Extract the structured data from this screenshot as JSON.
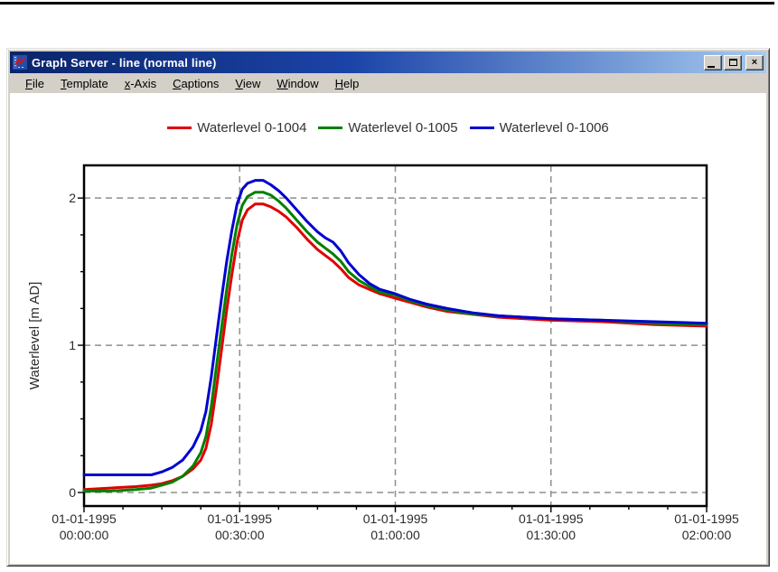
{
  "window": {
    "title": "Graph Server - line (normal line)",
    "controls": {
      "close_glyph": "×"
    }
  },
  "menubar": {
    "items": [
      {
        "key": "F",
        "rest": "ile"
      },
      {
        "key": "T",
        "rest": "emplate"
      },
      {
        "key": "x",
        "rest": "-Axis"
      },
      {
        "key": "C",
        "rest": "aptions"
      },
      {
        "key": "V",
        "rest": "iew"
      },
      {
        "key": "W",
        "rest": "indow"
      },
      {
        "key": "H",
        "rest": "elp"
      }
    ]
  },
  "chart_data": {
    "type": "line",
    "title": "",
    "legend_position": "top-center",
    "grid": "dashed",
    "x_axis": {
      "unit": "time (minutes from 01-01-1995 00:00:00)",
      "range": [
        0,
        120
      ],
      "minor_step": 7.5,
      "gridlines_at": [
        30,
        60,
        90
      ],
      "major_ticks": [
        {
          "t": 0,
          "date": "01-01-1995",
          "time": "00:00:00"
        },
        {
          "t": 30,
          "date": "01-01-1995",
          "time": "00:30:00"
        },
        {
          "t": 60,
          "date": "01-01-1995",
          "time": "01:00:00"
        },
        {
          "t": 90,
          "date": "01-01-1995",
          "time": "01:30:00"
        },
        {
          "t": 120,
          "date": "01-01-1995",
          "time": "02:00:00"
        }
      ]
    },
    "y_axis": {
      "label": "Waterlevel [m AD]",
      "range": [
        -0.092,
        2.222
      ],
      "major_ticks": [
        0,
        1,
        2
      ],
      "minor_step": 0.25,
      "gridlines_at": [
        0,
        1,
        2
      ]
    },
    "series": [
      {
        "name": "Waterlevel 0-1004",
        "color": "#e00000",
        "points": [
          [
            0,
            0.02
          ],
          [
            5,
            0.03
          ],
          [
            10,
            0.04
          ],
          [
            13,
            0.05
          ],
          [
            15,
            0.06
          ],
          [
            17,
            0.08
          ],
          [
            19,
            0.11
          ],
          [
            21,
            0.16
          ],
          [
            22.5,
            0.22
          ],
          [
            23.5,
            0.3
          ],
          [
            24.5,
            0.46
          ],
          [
            25.5,
            0.7
          ],
          [
            26.5,
            0.97
          ],
          [
            27.5,
            1.24
          ],
          [
            28.5,
            1.48
          ],
          [
            29.5,
            1.7
          ],
          [
            30.5,
            1.85
          ],
          [
            31.5,
            1.92
          ],
          [
            33,
            1.96
          ],
          [
            34.5,
            1.96
          ],
          [
            36,
            1.94
          ],
          [
            37.5,
            1.91
          ],
          [
            39,
            1.87
          ],
          [
            41,
            1.8
          ],
          [
            43,
            1.72
          ],
          [
            45,
            1.65
          ],
          [
            46.5,
            1.61
          ],
          [
            48,
            1.57
          ],
          [
            49.5,
            1.52
          ],
          [
            51,
            1.46
          ],
          [
            53,
            1.41
          ],
          [
            55,
            1.38
          ],
          [
            57,
            1.35
          ],
          [
            60,
            1.32
          ],
          [
            63,
            1.29
          ],
          [
            66,
            1.26
          ],
          [
            70,
            1.23
          ],
          [
            75,
            1.21
          ],
          [
            80,
            1.19
          ],
          [
            85,
            1.18
          ],
          [
            90,
            1.17
          ],
          [
            100,
            1.16
          ],
          [
            110,
            1.14
          ],
          [
            120,
            1.13
          ]
        ]
      },
      {
        "name": "Waterlevel 0-1005",
        "color": "#008000",
        "points": [
          [
            0,
            0.01
          ],
          [
            5,
            0.01
          ],
          [
            10,
            0.02
          ],
          [
            13,
            0.03
          ],
          [
            15,
            0.05
          ],
          [
            17,
            0.07
          ],
          [
            19,
            0.11
          ],
          [
            21,
            0.18
          ],
          [
            22.5,
            0.27
          ],
          [
            23.5,
            0.38
          ],
          [
            24.5,
            0.58
          ],
          [
            25.5,
            0.85
          ],
          [
            26.5,
            1.12
          ],
          [
            27.5,
            1.38
          ],
          [
            28.5,
            1.62
          ],
          [
            29.5,
            1.82
          ],
          [
            30.5,
            1.95
          ],
          [
            31.5,
            2.01
          ],
          [
            33,
            2.04
          ],
          [
            34.5,
            2.04
          ],
          [
            36,
            2.02
          ],
          [
            37.5,
            1.98
          ],
          [
            39,
            1.93
          ],
          [
            41,
            1.85
          ],
          [
            43,
            1.77
          ],
          [
            45,
            1.7
          ],
          [
            46.5,
            1.66
          ],
          [
            48,
            1.62
          ],
          [
            49.5,
            1.57
          ],
          [
            51,
            1.5
          ],
          [
            53,
            1.44
          ],
          [
            55,
            1.4
          ],
          [
            57,
            1.36
          ],
          [
            60,
            1.34
          ],
          [
            63,
            1.3
          ],
          [
            66,
            1.27
          ],
          [
            70,
            1.24
          ],
          [
            75,
            1.21
          ],
          [
            80,
            1.2
          ],
          [
            85,
            1.19
          ],
          [
            90,
            1.18
          ],
          [
            100,
            1.17
          ],
          [
            110,
            1.15
          ],
          [
            120,
            1.14
          ]
        ]
      },
      {
        "name": "Waterlevel 0-1006",
        "color": "#0000d0",
        "points": [
          [
            0,
            0.12
          ],
          [
            5,
            0.12
          ],
          [
            10,
            0.12
          ],
          [
            13,
            0.12
          ],
          [
            15,
            0.14
          ],
          [
            17,
            0.17
          ],
          [
            19,
            0.22
          ],
          [
            21,
            0.31
          ],
          [
            22.5,
            0.42
          ],
          [
            23.5,
            0.55
          ],
          [
            24.5,
            0.78
          ],
          [
            25.5,
            1.05
          ],
          [
            26.5,
            1.32
          ],
          [
            27.5,
            1.57
          ],
          [
            28.5,
            1.78
          ],
          [
            29.5,
            1.96
          ],
          [
            30.5,
            2.06
          ],
          [
            31.5,
            2.1
          ],
          [
            33,
            2.12
          ],
          [
            34.5,
            2.12
          ],
          [
            36,
            2.09
          ],
          [
            37.5,
            2.05
          ],
          [
            39,
            2.0
          ],
          [
            41,
            1.92
          ],
          [
            43,
            1.84
          ],
          [
            45,
            1.77
          ],
          [
            46.5,
            1.73
          ],
          [
            48,
            1.7
          ],
          [
            49.5,
            1.64
          ],
          [
            51,
            1.56
          ],
          [
            53,
            1.48
          ],
          [
            55,
            1.42
          ],
          [
            57,
            1.38
          ],
          [
            60,
            1.35
          ],
          [
            63,
            1.31
          ],
          [
            66,
            1.28
          ],
          [
            70,
            1.25
          ],
          [
            75,
            1.22
          ],
          [
            80,
            1.2
          ],
          [
            85,
            1.19
          ],
          [
            90,
            1.18
          ],
          [
            100,
            1.17
          ],
          [
            110,
            1.16
          ],
          [
            120,
            1.15
          ]
        ]
      }
    ]
  }
}
